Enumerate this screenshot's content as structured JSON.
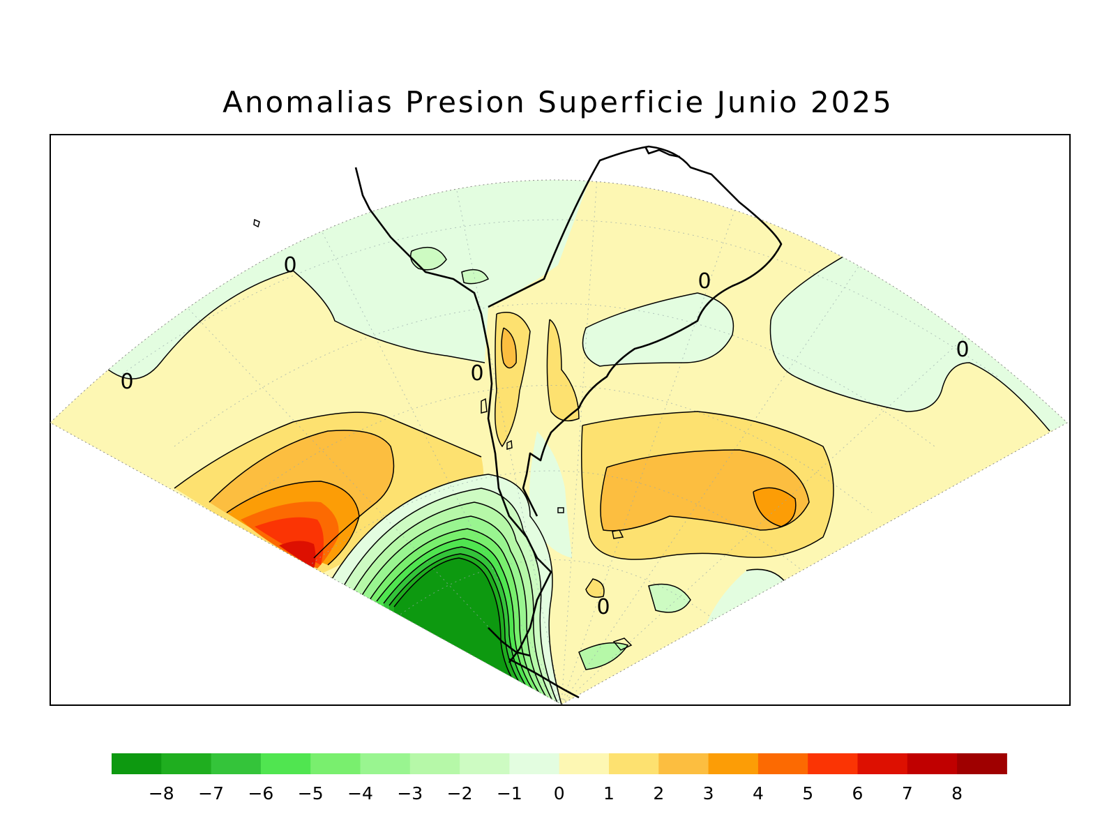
{
  "title": "Anomalias Presion Superficie Junio 2025",
  "contour_labels": [
    "0",
    "0",
    "0",
    "0",
    "0",
    "0"
  ],
  "colorbar": {
    "colors": [
      "#0d9910",
      "#1fae1f",
      "#34c43a",
      "#50e550",
      "#79ef6e",
      "#99f590",
      "#b6f8a8",
      "#cdfbc2",
      "#e3fde0",
      "#fdf7b3",
      "#fde170",
      "#fcbe40",
      "#fc9d06",
      "#fc6a02",
      "#fb3404",
      "#dd1001",
      "#c00000",
      "#9f0000"
    ],
    "ticks": [
      "−8",
      "−7",
      "−6",
      "−5",
      "−4",
      "−3",
      "−2",
      "−1",
      "0",
      "1",
      "2",
      "3",
      "4",
      "5",
      "6",
      "7",
      "8"
    ]
  }
}
